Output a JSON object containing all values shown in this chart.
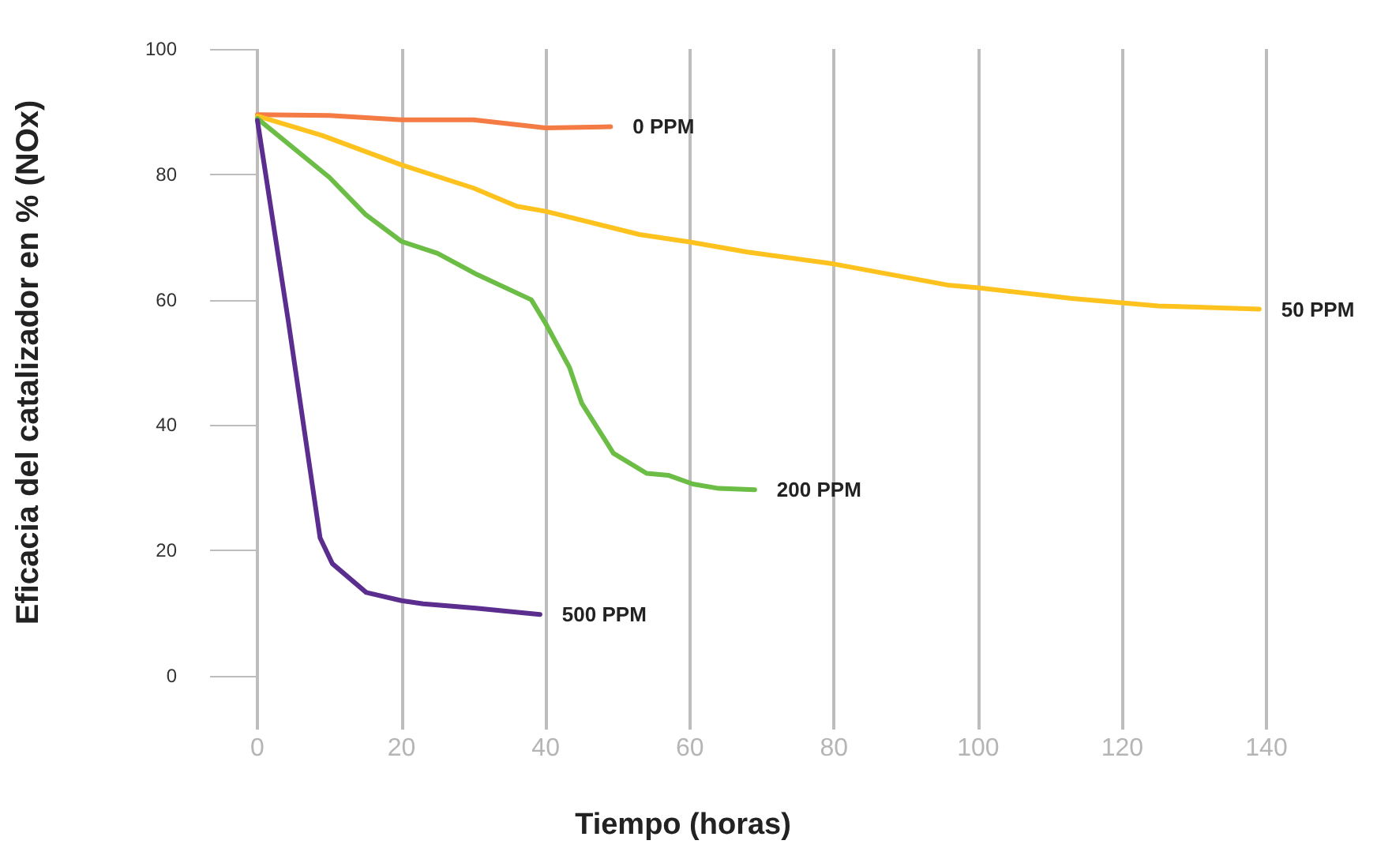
{
  "chart_data": {
    "type": "line",
    "xlabel": "Tiempo (horas)",
    "ylabel": "Eficacia del catalizador en % (NOx)",
    "xlim": [
      0,
      140
    ],
    "xticks": [
      0,
      20,
      40,
      60,
      80,
      100,
      120,
      140
    ],
    "ylim": [
      0,
      100
    ],
    "yticks": [
      0,
      20,
      40,
      60,
      80,
      100
    ],
    "grid": "x",
    "marker": "none",
    "series": [
      {
        "name": "0 PPM",
        "color": "#f47b44",
        "x": [
          0,
          10,
          20,
          30,
          40,
          49
        ],
        "values": [
          89.5,
          89.4,
          88.7,
          88.7,
          87.4,
          87.6
        ]
      },
      {
        "name": "50 PPM",
        "color": "#fdc21d",
        "x": [
          0,
          9,
          20,
          30,
          36,
          40,
          53,
          60,
          68,
          80,
          96,
          100,
          113,
          119,
          125,
          139
        ],
        "values": [
          89.3,
          86.2,
          81.5,
          77.8,
          74.9,
          74.1,
          70.4,
          69.2,
          67.6,
          65.7,
          62.3,
          61.9,
          60.2,
          59.6,
          59,
          58.5
        ]
      },
      {
        "name": "200 PPM",
        "color": "#6cbd45",
        "x": [
          0,
          10,
          15,
          20,
          25,
          30.5,
          38,
          40,
          43.3,
          45,
          49.4,
          54,
          57,
          60.4,
          64,
          69
        ],
        "values": [
          88.9,
          79.5,
          73.6,
          69.3,
          67.4,
          64,
          60,
          56.2,
          49.2,
          43.5,
          35.5,
          32.3,
          32,
          30.6,
          29.9,
          29.7
        ]
      },
      {
        "name": "500 PPM",
        "color": "#5b2d8e",
        "x": [
          0,
          4.3,
          8.7,
          10.4,
          15.1,
          20,
          23,
          30.3,
          39.2
        ],
        "values": [
          88.6,
          56.5,
          22,
          17.9,
          13.3,
          12,
          11.5,
          10.8,
          9.8
        ]
      }
    ]
  }
}
